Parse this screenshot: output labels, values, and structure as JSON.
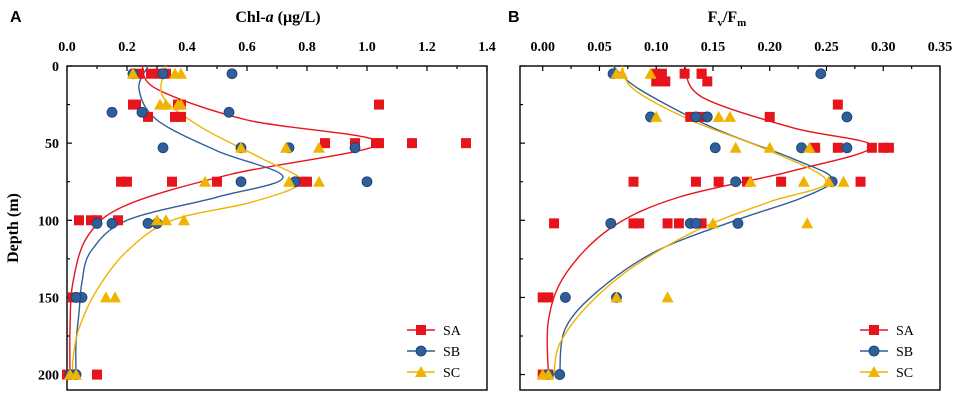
{
  "chart_data": [
    {
      "type": "scatter",
      "panel": "A",
      "xlabel_main": "Chl-",
      "xlabel_italic": "a",
      "xlabel_unit": " (µg/L)",
      "ylabel": "Depth (m)",
      "xlim": [
        0,
        1.4
      ],
      "ylim": [
        0,
        210
      ],
      "xticks": [
        "0.0",
        "0.2",
        "0.4",
        "0.6",
        "0.8",
        "1.0",
        "1.2",
        "1.4"
      ],
      "yticks": [
        "0",
        "50",
        "100",
        "150",
        "200"
      ],
      "legend_position": "bottom-right",
      "series": [
        {
          "name": "SA",
          "color": "#e8141b",
          "marker": "square",
          "points": [
            [
              0.24,
              5
            ],
            [
              0.28,
              5
            ],
            [
              0.31,
              5
            ],
            [
              0.33,
              5
            ],
            [
              0.22,
              25
            ],
            [
              0.23,
              25
            ],
            [
              0.37,
              25
            ],
            [
              0.38,
              25
            ],
            [
              1.04,
              25
            ],
            [
              0.27,
              33
            ],
            [
              0.36,
              33
            ],
            [
              0.38,
              33
            ],
            [
              0.86,
              50
            ],
            [
              1.03,
              50
            ],
            [
              1.04,
              50
            ],
            [
              1.15,
              50
            ],
            [
              1.33,
              50
            ],
            [
              0.96,
              50
            ],
            [
              0.18,
              75
            ],
            [
              0.2,
              75
            ],
            [
              0.35,
              75
            ],
            [
              0.5,
              75
            ],
            [
              0.78,
              75
            ],
            [
              0.8,
              75
            ],
            [
              0.04,
              100
            ],
            [
              0.08,
              100
            ],
            [
              0.1,
              100
            ],
            [
              0.17,
              100
            ],
            [
              0.02,
              150
            ],
            [
              0.04,
              150
            ],
            [
              0.0,
              200
            ],
            [
              0.1,
              200
            ]
          ],
          "curve": [
            [
              0.25,
              0
            ],
            [
              0.3,
              15
            ],
            [
              0.6,
              35
            ],
            [
              1.04,
              50
            ],
            [
              0.55,
              70
            ],
            [
              0.2,
              90
            ],
            [
              0.07,
              110
            ],
            [
              0.02,
              140
            ],
            [
              0.01,
              170
            ],
            [
              0.01,
              200
            ]
          ]
        },
        {
          "name": "SB",
          "color": "#2e5f9b",
          "marker": "circle",
          "points": [
            [
              0.22,
              5
            ],
            [
              0.32,
              5
            ],
            [
              0.55,
              5
            ],
            [
              0.15,
              30
            ],
            [
              0.25,
              30
            ],
            [
              0.54,
              30
            ],
            [
              0.32,
              53
            ],
            [
              0.58,
              53
            ],
            [
              0.74,
              53
            ],
            [
              0.96,
              53
            ],
            [
              0.58,
              75
            ],
            [
              0.76,
              75
            ],
            [
              1.0,
              75
            ],
            [
              0.1,
              102
            ],
            [
              0.15,
              102
            ],
            [
              0.27,
              102
            ],
            [
              0.3,
              102
            ],
            [
              0.05,
              150
            ],
            [
              0.03,
              150
            ],
            [
              0.03,
              200
            ],
            [
              0.01,
              200
            ]
          ],
          "curve": [
            [
              0.27,
              0
            ],
            [
              0.24,
              15
            ],
            [
              0.3,
              35
            ],
            [
              0.5,
              55
            ],
            [
              0.72,
              72
            ],
            [
              0.5,
              85
            ],
            [
              0.2,
              100
            ],
            [
              0.08,
              120
            ],
            [
              0.05,
              140
            ],
            [
              0.04,
              160
            ],
            [
              0.03,
              180
            ],
            [
              0.03,
              200
            ]
          ]
        },
        {
          "name": "SC",
          "color": "#f0b400",
          "marker": "triangle",
          "points": [
            [
              0.22,
              5
            ],
            [
              0.36,
              5
            ],
            [
              0.38,
              5
            ],
            [
              0.31,
              25
            ],
            [
              0.33,
              25
            ],
            [
              0.37,
              25
            ],
            [
              0.38,
              25
            ],
            [
              0.58,
              53
            ],
            [
              0.73,
              53
            ],
            [
              0.84,
              53
            ],
            [
              0.46,
              75
            ],
            [
              0.74,
              75
            ],
            [
              0.84,
              75
            ],
            [
              0.33,
              100
            ],
            [
              0.39,
              100
            ],
            [
              0.3,
              100
            ],
            [
              0.13,
              150
            ],
            [
              0.16,
              150
            ],
            [
              0.03,
              200
            ],
            [
              0.01,
              200
            ]
          ],
          "curve": [
            [
              0.33,
              0
            ],
            [
              0.32,
              20
            ],
            [
              0.45,
              40
            ],
            [
              0.65,
              60
            ],
            [
              0.78,
              75
            ],
            [
              0.62,
              88
            ],
            [
              0.35,
              100
            ],
            [
              0.2,
              120
            ],
            [
              0.1,
              145
            ],
            [
              0.04,
              170
            ],
            [
              0.02,
              190
            ],
            [
              0.02,
              200
            ]
          ]
        }
      ],
      "legend": [
        "SA",
        "SB",
        "SC"
      ]
    },
    {
      "type": "scatter",
      "panel": "B",
      "xlabel_main": "F",
      "xlabel_sub1": "v",
      "xlabel_slash": "/F",
      "xlabel_sub2": "m",
      "ylabel": "",
      "xlim": [
        -0.02,
        0.35
      ],
      "ylim": [
        0,
        210
      ],
      "xticks": [
        "0.00",
        "0.05",
        "0.10",
        "0.15",
        "0.20",
        "0.25",
        "0.30",
        "0.35"
      ],
      "xtick_values": [
        0,
        0.05,
        0.1,
        0.15,
        0.2,
        0.25,
        0.3,
        0.35
      ],
      "yticks": [],
      "legend_position": "bottom-right",
      "series": [
        {
          "name": "SA",
          "color": "#e8141b",
          "marker": "square",
          "points": [
            [
              0.1,
              5
            ],
            [
              0.105,
              5
            ],
            [
              0.108,
              10
            ],
            [
              0.125,
              5
            ],
            [
              0.14,
              5
            ],
            [
              0.145,
              10
            ],
            [
              0.14,
              5
            ],
            [
              0.1,
              10
            ],
            [
              0.13,
              33
            ],
            [
              0.14,
              33
            ],
            [
              0.2,
              33
            ],
            [
              0.26,
              25
            ],
            [
              0.24,
              53
            ],
            [
              0.26,
              53
            ],
            [
              0.29,
              53
            ],
            [
              0.3,
              53
            ],
            [
              0.305,
              53
            ],
            [
              0.08,
              75
            ],
            [
              0.135,
              75
            ],
            [
              0.155,
              75
            ],
            [
              0.18,
              75
            ],
            [
              0.21,
              75
            ],
            [
              0.28,
              75
            ],
            [
              0.01,
              102
            ],
            [
              0.08,
              102
            ],
            [
              0.085,
              102
            ],
            [
              0.11,
              102
            ],
            [
              0.12,
              102
            ],
            [
              0.14,
              102
            ],
            [
              0.0,
              150
            ],
            [
              0.005,
              150
            ],
            [
              0.0,
              200
            ],
            [
              0.005,
              200
            ]
          ],
          "curve": [
            [
              0.125,
              0
            ],
            [
              0.14,
              20
            ],
            [
              0.22,
              40
            ],
            [
              0.29,
              52
            ],
            [
              0.22,
              68
            ],
            [
              0.12,
              85
            ],
            [
              0.06,
              105
            ],
            [
              0.02,
              135
            ],
            [
              0.005,
              165
            ],
            [
              0.005,
              200
            ]
          ]
        },
        {
          "name": "SB",
          "color": "#2e5f9b",
          "marker": "circle",
          "points": [
            [
              0.062,
              5
            ],
            [
              0.245,
              5
            ],
            [
              0.095,
              33
            ],
            [
              0.135,
              33
            ],
            [
              0.145,
              33
            ],
            [
              0.268,
              33
            ],
            [
              0.152,
              53
            ],
            [
              0.228,
              53
            ],
            [
              0.268,
              53
            ],
            [
              0.17,
              75
            ],
            [
              0.255,
              75
            ],
            [
              0.06,
              102
            ],
            [
              0.13,
              102
            ],
            [
              0.135,
              102
            ],
            [
              0.172,
              102
            ],
            [
              0.02,
              150
            ],
            [
              0.065,
              150
            ],
            [
              0.005,
              200
            ],
            [
              0.015,
              200
            ]
          ],
          "curve": [
            [
              0.062,
              0
            ],
            [
              0.085,
              15
            ],
            [
              0.15,
              40
            ],
            [
              0.22,
              60
            ],
            [
              0.255,
              73
            ],
            [
              0.23,
              85
            ],
            [
              0.17,
              100
            ],
            [
              0.1,
              120
            ],
            [
              0.05,
              145
            ],
            [
              0.02,
              170
            ],
            [
              0.015,
              200
            ]
          ]
        },
        {
          "name": "SC",
          "color": "#f0b400",
          "marker": "triangle",
          "points": [
            [
              0.065,
              5
            ],
            [
              0.07,
              5
            ],
            [
              0.095,
              5
            ],
            [
              0.1,
              33
            ],
            [
              0.155,
              33
            ],
            [
              0.165,
              33
            ],
            [
              0.17,
              53
            ],
            [
              0.2,
              53
            ],
            [
              0.235,
              53
            ],
            [
              0.183,
              75
            ],
            [
              0.23,
              75
            ],
            [
              0.252,
              75
            ],
            [
              0.265,
              75
            ],
            [
              0.15,
              102
            ],
            [
              0.233,
              102
            ],
            [
              0.065,
              150
            ],
            [
              0.11,
              150
            ],
            [
              0.0,
              200
            ],
            [
              0.005,
              200
            ]
          ],
          "curve": [
            [
              0.07,
              0
            ],
            [
              0.08,
              15
            ],
            [
              0.13,
              35
            ],
            [
              0.2,
              55
            ],
            [
              0.25,
              75
            ],
            [
              0.2,
              88
            ],
            [
              0.14,
              105
            ],
            [
              0.08,
              130
            ],
            [
              0.04,
              155
            ],
            [
              0.015,
              180
            ],
            [
              0.01,
              200
            ]
          ]
        }
      ],
      "legend": [
        "SA",
        "SB",
        "SC"
      ]
    }
  ]
}
